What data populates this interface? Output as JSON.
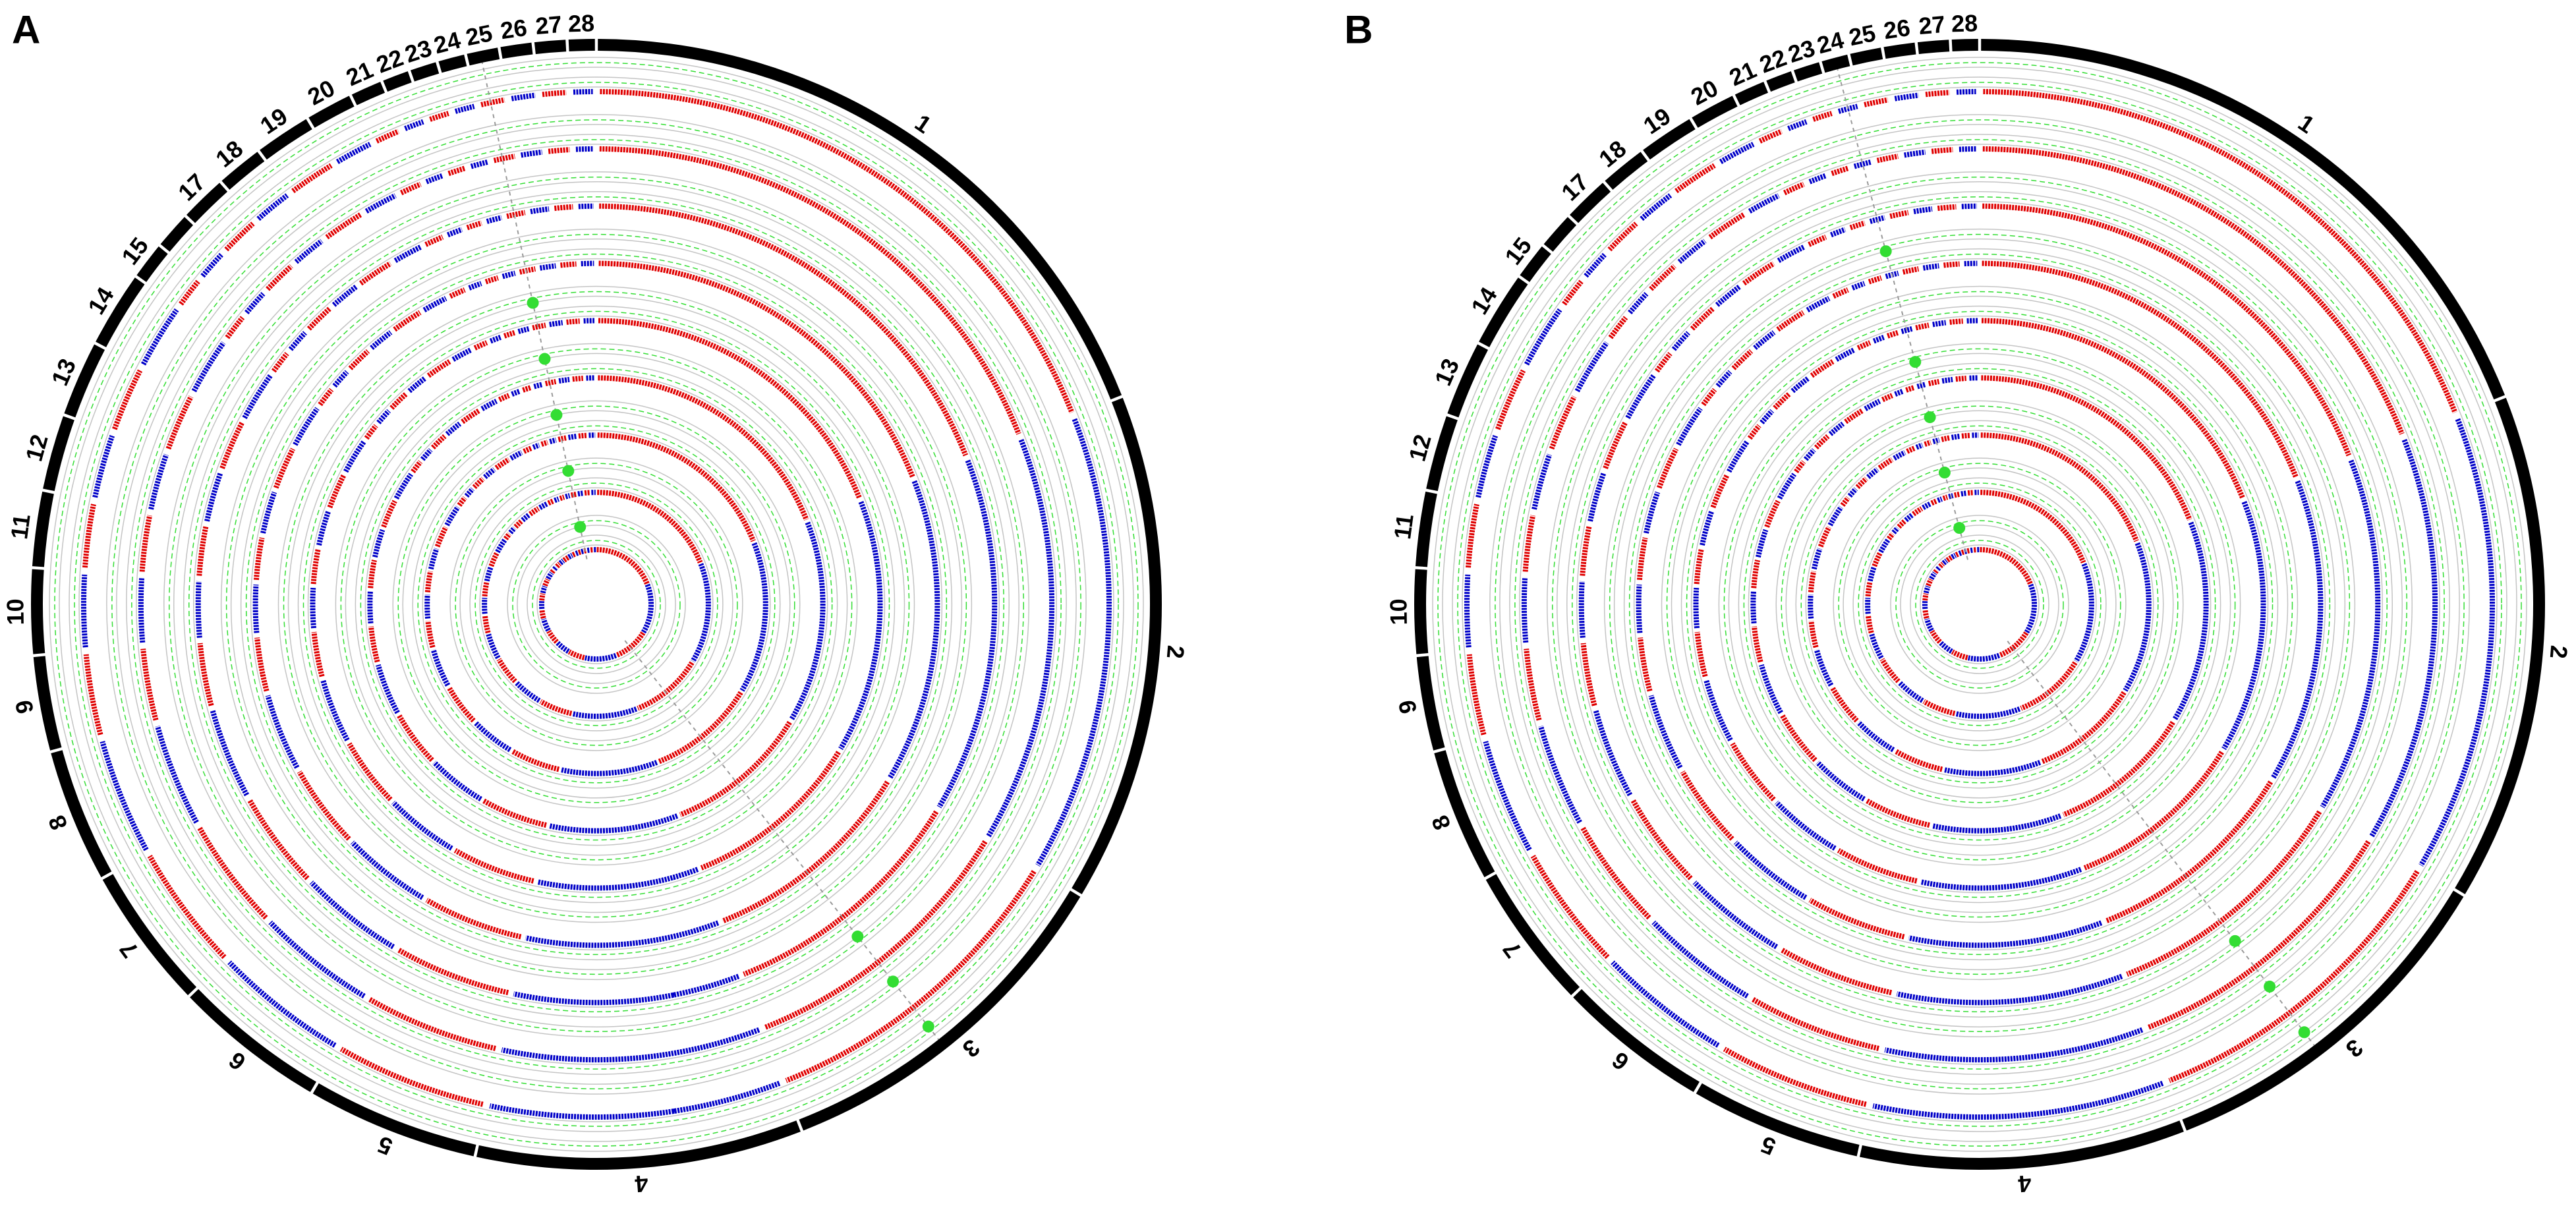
{
  "chart_data": [
    {
      "type": "circular-manhattan",
      "title": "A",
      "categories": [
        "1",
        "2",
        "3",
        "4",
        "5",
        "6",
        "7",
        "8",
        "9",
        "10",
        "11",
        "12",
        "13",
        "14",
        "15",
        null,
        "17",
        "18",
        "19",
        "20",
        "21",
        "22",
        "23",
        "24",
        "25",
        "26",
        "27",
        "28"
      ],
      "values": [
        69,
        53,
        38,
        34,
        18,
        16,
        15,
        14,
        10,
        9,
        8,
        8,
        8,
        8,
        4,
        4,
        5,
        5,
        6,
        5,
        3.5,
        3,
        3,
        3,
        3.5,
        3.5,
        3.5,
        3
      ],
      "colors": [
        "#e00000",
        "#0000c8"
      ],
      "tracks": 9,
      "highlight_color": "#33dd33",
      "significant": {
        "x": [
          351,
          351,
          351,
          351,
          351,
          143,
          143,
          143
        ],
        "track": [
          5,
          6,
          7,
          8,
          9,
          3,
          2,
          1
        ]
      }
    },
    {
      "type": "circular-manhattan",
      "title": "B",
      "categories": [
        "1",
        "2",
        "3",
        "4",
        "5",
        "6",
        "7",
        "8",
        "9",
        "10",
        "11",
        "12",
        "13",
        "14",
        "15",
        null,
        "17",
        "18",
        "19",
        "20",
        "21",
        "22",
        "23",
        "24",
        "25",
        "26",
        "27",
        "28"
      ],
      "values": [
        69,
        53,
        38,
        34,
        18,
        16,
        15,
        14,
        10,
        9,
        8,
        8,
        8,
        8,
        4,
        4,
        5,
        5,
        6,
        5,
        3.5,
        3,
        3,
        3,
        3.5,
        3.5,
        3.5,
        3
      ],
      "colors": [
        "#e00000",
        "#0000c8"
      ],
      "tracks": 9,
      "highlight_color": "#33dd33",
      "significant": {
        "x": [
          348,
          348,
          348,
          348,
          348,
          144,
          144,
          144
        ],
        "track": [
          4,
          6,
          7,
          8,
          9,
          3,
          2,
          1
        ]
      }
    }
  ]
}
